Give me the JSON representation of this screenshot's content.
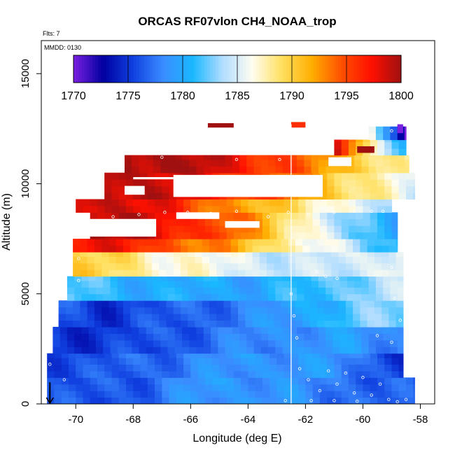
{
  "chart_data": {
    "type": "heatmap",
    "title": "ORCAS RF07vlon CH4_NOAA_trop",
    "flights_label": "Flts: 7",
    "date_label": "MMDD: 0130",
    "xlabel": "Longitude (deg E)",
    "ylabel": "Altitude (m)",
    "xlim": [
      -71.2,
      -57.5
    ],
    "ylim": [
      0,
      16500
    ],
    "xticks": [
      {
        "value": -70,
        "label": "-70"
      },
      {
        "value": -68,
        "label": "-68"
      },
      {
        "value": -66,
        "label": "-66"
      },
      {
        "value": -64,
        "label": "-64"
      },
      {
        "value": -62,
        "label": "-62"
      },
      {
        "value": -60,
        "label": "-60"
      },
      {
        "value": -58,
        "label": "-58"
      }
    ],
    "yticks": [
      {
        "value": 0,
        "label": "0"
      },
      {
        "value": 5000,
        "label": "5000"
      },
      {
        "value": 10000,
        "label": "10000"
      },
      {
        "value": 15000,
        "label": "15000"
      }
    ],
    "colorbar": {
      "min": 1770,
      "max": 1800,
      "ticks": [
        {
          "value": 1770,
          "label": "1770"
        },
        {
          "value": 1775,
          "label": "1775"
        },
        {
          "value": 1780,
          "label": "1780"
        },
        {
          "value": 1785,
          "label": "1785"
        },
        {
          "value": 1790,
          "label": "1790"
        },
        {
          "value": 1795,
          "label": "1795"
        },
        {
          "value": 1800,
          "label": "1800"
        }
      ],
      "colors": [
        "#7b1fe0",
        "#0000a0",
        "#1040e0",
        "#3a8cff",
        "#1ab8ff",
        "#b0dcff",
        "#fffdf0",
        "#ffe060",
        "#ffae00",
        "#ff5000",
        "#ff1000",
        "#a01010"
      ]
    },
    "grid": false,
    "cell_size": {
      "dlon": 0.25,
      "dalt": 300
    },
    "layers": [
      {
        "alt": [
          0,
          1200
        ],
        "lon": [
          -71.0,
          -58.2
        ],
        "v": [
          1776,
          1776,
          1777,
          1779,
          1779,
          1778,
          1777,
          1776
        ]
      },
      {
        "alt": [
          1200,
          2300
        ],
        "lon": [
          -71.0,
          -58.6
        ],
        "v": [
          1776,
          1776,
          1777,
          1778,
          1779,
          1779,
          1778,
          1775
        ]
      },
      {
        "alt": [
          2300,
          3500
        ],
        "lon": [
          -70.8,
          -58.6
        ],
        "v": [
          1775,
          1775,
          1776,
          1777,
          1778,
          1779,
          1779,
          1778
        ]
      },
      {
        "alt": [
          3500,
          4700
        ],
        "lon": [
          -70.6,
          -58.6
        ],
        "v": [
          1776,
          1775,
          1776,
          1777,
          1778,
          1780,
          1782,
          1783
        ]
      },
      {
        "alt": [
          4700,
          5800
        ],
        "lon": [
          -70.3,
          -58.6
        ],
        "v": [
          1782,
          1781,
          1780,
          1780,
          1780,
          1781,
          1783,
          1784
        ]
      },
      {
        "alt": [
          5800,
          6900
        ],
        "lon": [
          -70.1,
          -58.6
        ],
        "v": [
          1790,
          1789,
          1787,
          1786,
          1785,
          1784,
          1785,
          1786
        ]
      },
      {
        "alt": [
          6900,
          7500
        ],
        "lon": [
          -70.1,
          -58.8
        ],
        "v": [
          1798,
          1797,
          1795,
          1793,
          1790,
          1787,
          1784,
          1781
        ]
      },
      {
        "alt": [
          7500,
          8700
        ],
        "lon": [
          -69.5,
          -58.8
        ],
        "v": [
          1800,
          1799,
          1797,
          1795,
          1791,
          1787,
          1782,
          1780
        ]
      },
      {
        "alt": [
          8700,
          9300
        ],
        "lon": [
          -70.0,
          -59.0
        ],
        "v": [
          1799,
          1799,
          1797,
          1794,
          1791,
          1789,
          1786,
          1783
        ]
      },
      {
        "alt": [
          9300,
          10500
        ],
        "lon": [
          -69.0,
          -58.2
        ],
        "v": [
          1800,
          1799,
          1798,
          1796,
          1794,
          1791,
          1788,
          1785
        ]
      },
      {
        "alt": [
          10500,
          11300
        ],
        "lon": [
          -68.3,
          -58.4
        ],
        "v": [
          1800,
          1800,
          1799,
          1797,
          1795,
          1792,
          1790,
          1787
        ]
      },
      {
        "alt": [
          11300,
          12000
        ],
        "lon": [
          -61.0,
          -58.5
        ],
        "v": [
          1799,
          1796,
          1793,
          1790,
          1787,
          1784,
          1782,
          1781
        ]
      },
      {
        "alt": [
          12000,
          12600
        ],
        "lon": [
          -59.8,
          -58.5
        ],
        "v": [
          1788,
          1785,
          1783,
          1781,
          1779,
          1777,
          1774,
          1771
        ]
      }
    ],
    "gaps": [
      {
        "alt": [
          9400,
          10400
        ],
        "lon": [
          -66.6,
          -61.4
        ]
      },
      {
        "alt": [
          10200,
          10300
        ],
        "lon": [
          -68.0,
          -66.6
        ]
      },
      {
        "alt": [
          9500,
          9900
        ],
        "lon": [
          -68.3,
          -67.6
        ]
      },
      {
        "alt": [
          7600,
          8400
        ],
        "lon": [
          -69.8,
          -67.2
        ]
      },
      {
        "alt": [
          8400,
          8700
        ],
        "lon": [
          -66.5,
          -65.0
        ]
      },
      {
        "alt": [
          8000,
          8300
        ],
        "lon": [
          -64.8,
          -63.6
        ]
      },
      {
        "alt": [
          10800,
          11200
        ],
        "lon": [
          -61.2,
          -60.4
        ]
      }
    ],
    "extras": [
      {
        "alt": [
          12550,
          12750
        ],
        "lon": [
          -65.4,
          -64.5
        ],
        "value": 1800
      },
      {
        "alt": [
          12550,
          12800
        ],
        "lon": [
          -62.5,
          -62.0
        ],
        "value": 1796
      },
      {
        "alt": [
          11400,
          11700
        ],
        "lon": [
          -60.2,
          -59.6
        ],
        "value": 1800
      },
      {
        "alt": [
          12300,
          12700
        ],
        "lon": [
          -58.8,
          -58.6
        ],
        "value": 1770
      }
    ],
    "flight_path": {
      "vertical_line_lon": -62.5,
      "samples": [
        {
          "lon": -70.9,
          "alt": 1800
        },
        {
          "lon": -70.4,
          "alt": 1100
        },
        {
          "lon": -68.7,
          "alt": 8500
        },
        {
          "lon": -67.8,
          "alt": 8600
        },
        {
          "lon": -66.9,
          "alt": 8700
        },
        {
          "lon": -66.1,
          "alt": 8700
        },
        {
          "lon": -65.3,
          "alt": 8650
        },
        {
          "lon": -64.4,
          "alt": 8750
        },
        {
          "lon": -63.3,
          "alt": 8500
        },
        {
          "lon": -62.6,
          "alt": 8700
        },
        {
          "lon": -61.9,
          "alt": 8600
        },
        {
          "lon": -61.0,
          "alt": 8700
        },
        {
          "lon": -60.3,
          "alt": 8750
        },
        {
          "lon": -59.7,
          "alt": 8750
        },
        {
          "lon": -59.3,
          "alt": 8750
        },
        {
          "lon": -68.4,
          "alt": 11300
        },
        {
          "lon": -67.0,
          "alt": 11200
        },
        {
          "lon": -64.4,
          "alt": 11100
        },
        {
          "lon": -62.9,
          "alt": 11100
        },
        {
          "lon": -60.6,
          "alt": 12100
        },
        {
          "lon": -59.0,
          "alt": 12400
        },
        {
          "lon": -69.9,
          "alt": 6600
        },
        {
          "lon": -69.9,
          "alt": 5600
        },
        {
          "lon": -59.0,
          "alt": 6200
        },
        {
          "lon": -58.7,
          "alt": 9100
        },
        {
          "lon": -58.7,
          "alt": 7700
        },
        {
          "lon": -58.9,
          "alt": 4800
        },
        {
          "lon": -58.7,
          "alt": 3800
        },
        {
          "lon": -59.0,
          "alt": 2800
        },
        {
          "lon": -62.5,
          "alt": 5000
        },
        {
          "lon": -62.4,
          "alt": 4000
        },
        {
          "lon": -62.3,
          "alt": 3000
        },
        {
          "lon": -61.6,
          "alt": 6000
        },
        {
          "lon": -61.3,
          "alt": 5800
        },
        {
          "lon": -60.9,
          "alt": 5700
        },
        {
          "lon": -59.5,
          "alt": 3100
        },
        {
          "lon": -62.2,
          "alt": 1600
        },
        {
          "lon": -61.9,
          "alt": 1100
        },
        {
          "lon": -61.5,
          "alt": 600
        },
        {
          "lon": -61.2,
          "alt": 1500
        },
        {
          "lon": -60.9,
          "alt": 900
        },
        {
          "lon": -60.6,
          "alt": 1400
        },
        {
          "lon": -60.3,
          "alt": 500
        },
        {
          "lon": -60.0,
          "alt": 1200
        },
        {
          "lon": -59.7,
          "alt": 400
        },
        {
          "lon": -59.4,
          "alt": 900
        },
        {
          "lon": -59.1,
          "alt": 200
        },
        {
          "lon": -58.8,
          "alt": 100
        },
        {
          "lon": -58.5,
          "alt": 200
        },
        {
          "lon": -62.7,
          "alt": 150
        },
        {
          "lon": -61.8,
          "alt": 150
        },
        {
          "lon": -61.0,
          "alt": 150
        },
        {
          "lon": -60.2,
          "alt": 120
        }
      ]
    },
    "arrow_marker": {
      "lon": -70.9,
      "alt_from": 600,
      "alt_to": 0
    }
  }
}
